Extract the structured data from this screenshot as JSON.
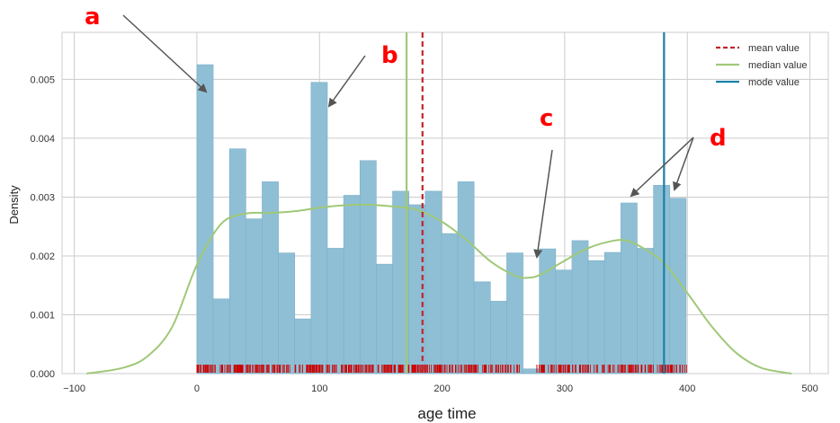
{
  "chart_data": {
    "type": "bar",
    "xlabel": "age time",
    "ylabel": "Density",
    "xlim": [
      -110,
      515
    ],
    "ylim": [
      0,
      0.0058
    ],
    "xticks": [
      -100,
      0,
      100,
      200,
      300,
      400,
      500
    ],
    "xtick_labels": [
      "−100",
      "0",
      "100",
      "200",
      "300",
      "400",
      "500"
    ],
    "yticks": [
      0.0,
      0.001,
      0.002,
      0.003,
      0.004,
      0.005
    ],
    "ytick_labels": [
      "0.000",
      "0.001",
      "0.002",
      "0.003",
      "0.004",
      "0.005"
    ],
    "grid": true,
    "histogram": {
      "bin_start": 0,
      "bin_width": 13.3,
      "densities": [
        0.00525,
        0.00127,
        0.00382,
        0.00263,
        0.00326,
        0.00205,
        0.00093,
        0.00495,
        0.00213,
        0.00303,
        0.00362,
        0.00186,
        0.0031,
        0.00287,
        0.0031,
        0.00238,
        0.00326,
        0.00156,
        0.00123,
        0.00205,
        8e-05,
        0.00212,
        0.00176,
        0.00226,
        0.00192,
        0.00206,
        0.0029,
        0.00213,
        0.0032,
        0.00298
      ]
    },
    "kde": {
      "x": [
        -90,
        -60,
        -40,
        -20,
        0,
        20,
        40,
        60,
        80,
        100,
        120,
        140,
        160,
        180,
        200,
        220,
        240,
        260,
        270,
        280,
        300,
        320,
        340,
        350,
        360,
        380,
        400,
        420,
        440,
        460,
        485
      ],
      "y": [
        0.0,
        0.0001,
        0.0003,
        0.0008,
        0.00185,
        0.00255,
        0.00272,
        0.00273,
        0.00276,
        0.00282,
        0.00286,
        0.00287,
        0.00284,
        0.00278,
        0.00258,
        0.00227,
        0.0019,
        0.00166,
        0.00163,
        0.00168,
        0.00192,
        0.00214,
        0.00226,
        0.00226,
        0.00218,
        0.0019,
        0.00137,
        0.0008,
        0.00035,
        0.0001,
        0.0
      ]
    },
    "rug": {
      "from": 0,
      "to": 400,
      "gap": [
        263,
        277
      ]
    },
    "lines": [
      {
        "name": "mean value",
        "x": 184,
        "color": "#c0262b",
        "style": "dashed"
      },
      {
        "name": "median value",
        "x": 171,
        "color": "#a0c878",
        "style": "solid"
      },
      {
        "name": "mode value",
        "x": 381,
        "color": "#1a7fa8",
        "style": "solid"
      }
    ],
    "legend": {
      "placement": "top-right",
      "entries": [
        "mean value",
        "median value",
        "mode value"
      ]
    },
    "annotations": [
      {
        "label": "a"
      },
      {
        "label": "b"
      },
      {
        "label": "c"
      },
      {
        "label": "d"
      }
    ],
    "colors": {
      "bars": "#8fbfd5",
      "bar_edge": "#7aafc8",
      "kde": "#a0c878",
      "rug": "#cc0000",
      "grid": "#cccccc",
      "arrow": "#555555",
      "annotation": "#ff0000"
    }
  }
}
